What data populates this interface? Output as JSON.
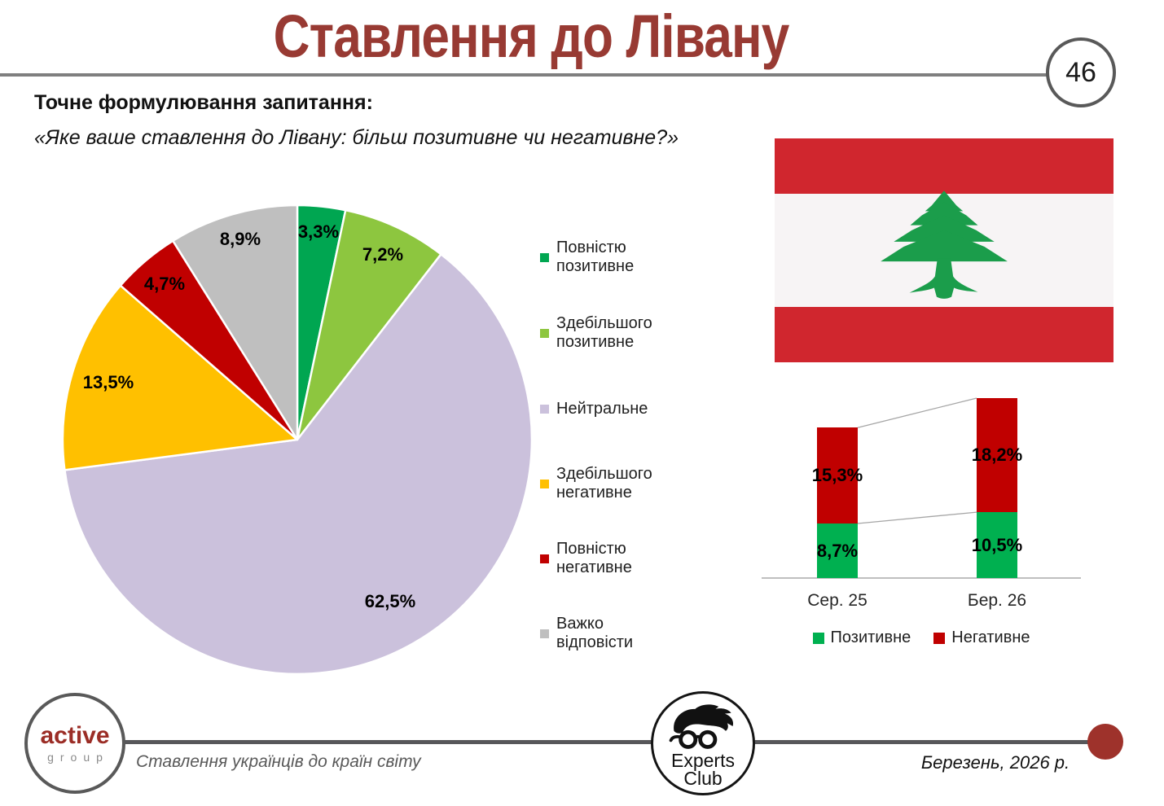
{
  "slide": {
    "title": "Ставлення до Лівану",
    "page_number": "46",
    "question_label": "Точне формулювання запитання:",
    "question_text": "«Яке ваше ставлення до Лівану: більш позитивне чи негативне?»"
  },
  "colors": {
    "title_red": "#983A33",
    "header_line": "#7F7F7F",
    "footer_line": "#57575A",
    "brand_red": "#9E322B"
  },
  "flag": {
    "name": "lebanon-flag",
    "stripe_red": "#D0262E",
    "field_white": "#F7F4F5",
    "cedar_green": "#1B9D4B"
  },
  "chart_data": [
    {
      "type": "pie",
      "categories": [
        "Повністю позитивне",
        "Здебільшого позитивне",
        "Нейтральне",
        "Здебільшого негативне",
        "Повністю негативне",
        "Важко відповісти"
      ],
      "values": [
        3.3,
        7.2,
        62.5,
        13.5,
        4.7,
        8.9
      ],
      "labels": [
        "3,3%",
        "7,2%",
        "62,5%",
        "13,5%",
        "4,7%",
        "8,9%"
      ],
      "colors": [
        "#00A651",
        "#8DC63F",
        "#CBC1DC",
        "#FFC000",
        "#C00000",
        "#BFBFBF"
      ],
      "start_angle": 0,
      "direction": "clockwise",
      "legend_position": "right"
    },
    {
      "type": "stacked-bar",
      "categories": [
        "Сер. 25",
        "Бер. 26"
      ],
      "series": [
        {
          "name": "Позитивне",
          "color": "#00B050",
          "values": [
            8.7,
            10.5
          ],
          "labels": [
            "8,7%",
            "10,5%"
          ]
        },
        {
          "name": "Негативне",
          "color": "#C00000",
          "values": [
            15.3,
            18.2
          ],
          "labels": [
            "15,3%",
            "18,2%"
          ]
        }
      ],
      "ylim": [
        0,
        30
      ],
      "grid": false,
      "legend_position": "bottom",
      "connector_lines": true
    }
  ],
  "footer": {
    "active_group": {
      "line1": "active",
      "line2": "group"
    },
    "caption": "Ставлення українців до країн світу",
    "experts_club": {
      "line1": "Experts",
      "line2": "Club"
    },
    "date": "Березень, 2026 р."
  }
}
